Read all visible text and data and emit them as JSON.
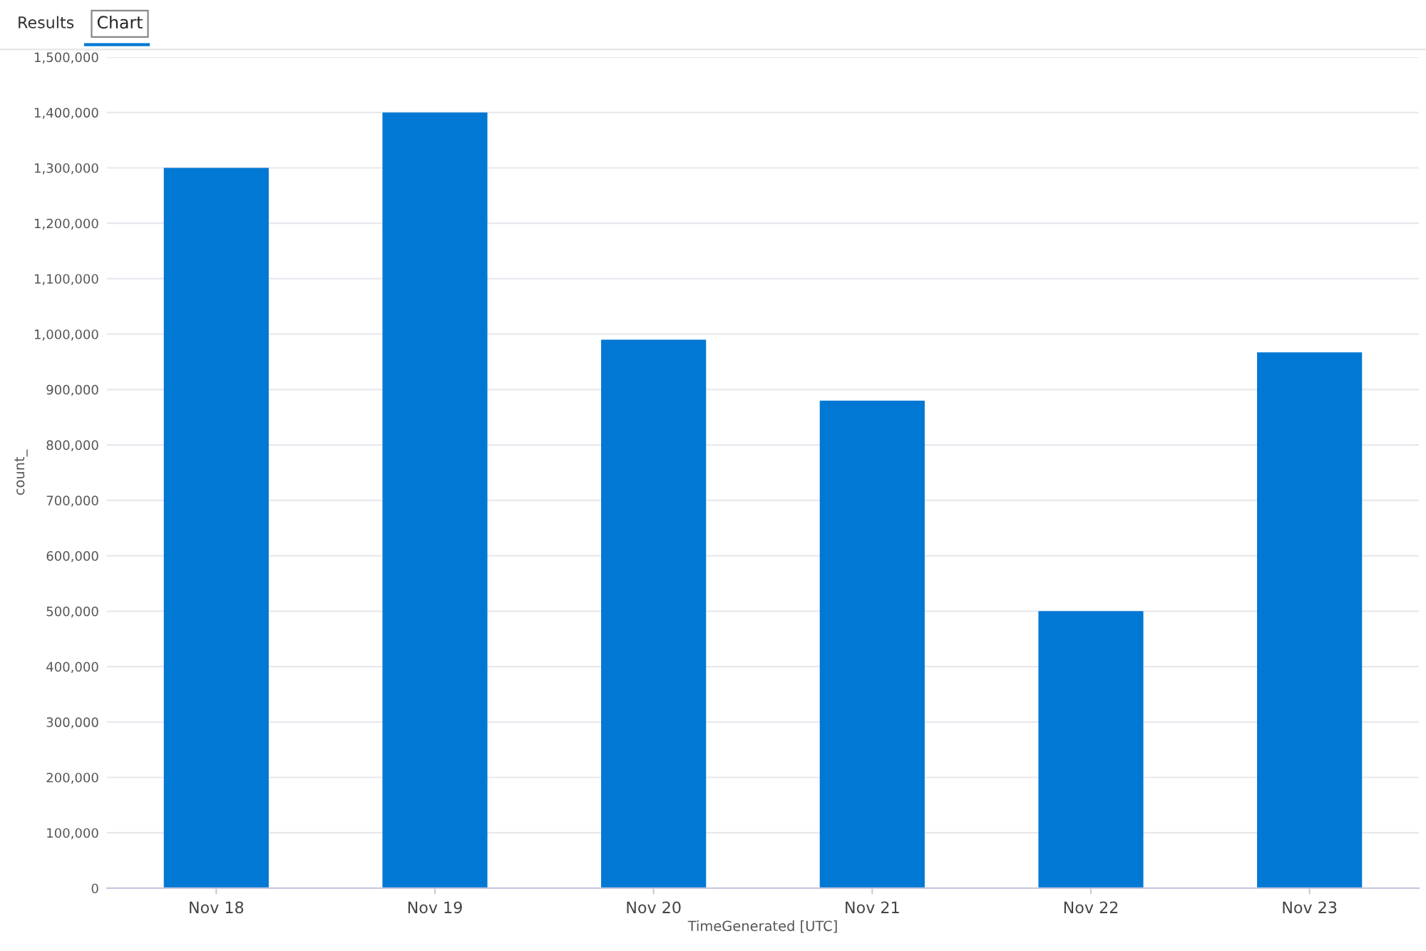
{
  "chart_data": {
    "type": "bar",
    "categories": [
      "Nov 18",
      "Nov 19",
      "Nov 20",
      "Nov 21",
      "Nov 22",
      "Nov 23"
    ],
    "values": [
      1300000,
      1400000,
      990000,
      880000,
      500000,
      967000
    ],
    "color": "#0078d4",
    "xlabel": "TimeGenerated [UTC]",
    "ylabel": "count_",
    "ylim": [
      0,
      1500000
    ],
    "yticks": [
      {
        "value": 0,
        "label": "0"
      },
      {
        "value": 100000,
        "label": "100,000"
      },
      {
        "value": 200000,
        "label": "200,000"
      },
      {
        "value": 300000,
        "label": "300,000"
      },
      {
        "value": 400000,
        "label": "400,000"
      },
      {
        "value": 500000,
        "label": "500,000"
      },
      {
        "value": 600000,
        "label": "600,000"
      },
      {
        "value": 700000,
        "label": "700,000"
      },
      {
        "value": 800000,
        "label": "800,000"
      },
      {
        "value": 900000,
        "label": "900,000"
      },
      {
        "value": 1000000,
        "label": "1,000,000"
      },
      {
        "value": 1100000,
        "label": "1,100,000"
      },
      {
        "value": 1200000,
        "label": "1,200,000"
      },
      {
        "value": 1300000,
        "label": "1,300,000"
      },
      {
        "value": 1400000,
        "label": "1,400,000"
      },
      {
        "value": 1500000,
        "label": "1,500,000"
      }
    ],
    "grid": "y",
    "annotations": [
      "Results",
      "Chart"
    ]
  }
}
